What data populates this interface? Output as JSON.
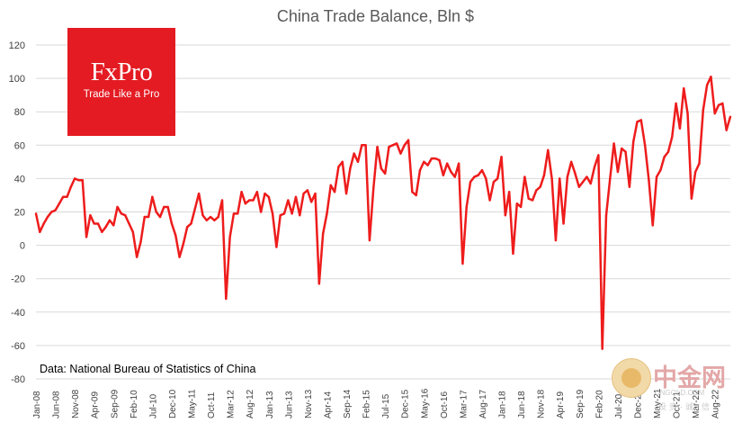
{
  "chart_data": {
    "type": "line",
    "title": "China Trade Balance, Bln $",
    "source_note": "Data: National Bureau of Statistics of China",
    "brand": {
      "name": "FxPro",
      "tagline": "Trade Like a Pro",
      "color": "#e41b23"
    },
    "watermark": {
      "name": "中金网",
      "url": "CNGOLD.COM",
      "tagline": "投资·诚·信"
    },
    "ylim": [
      -80,
      120
    ],
    "yticks": [
      -80,
      -60,
      -40,
      -20,
      0,
      20,
      40,
      60,
      80,
      100,
      120
    ],
    "grid": true,
    "line_color": "#ee1c1c",
    "x_start": "Jan-08",
    "xtick_labels": [
      "Jan-08",
      "Jun-08",
      "Nov-08",
      "Apr-09",
      "Sep-09",
      "Feb-10",
      "Jul-10",
      "Dec-10",
      "May-11",
      "Oct-11",
      "Mar-12",
      "Aug-12",
      "Jan-13",
      "Jun-13",
      "Nov-13",
      "Apr-14",
      "Sep-14",
      "Feb-15",
      "Jul-15",
      "Dec-15",
      "May-16",
      "Oct-16",
      "Mar-17",
      "Aug-17",
      "Jan-18",
      "Jun-18",
      "Nov-18",
      "Apr-19",
      "Sep-19",
      "Feb-20",
      "Jul-20",
      "Dec-20",
      "May-21",
      "Oct-21",
      "Mar-22",
      "Aug-22"
    ],
    "series": [
      {
        "values": [
          19,
          8,
          13,
          17,
          20,
          21,
          25,
          29,
          29,
          35,
          40,
          39,
          39,
          5,
          18,
          13,
          13,
          8,
          11,
          15,
          12,
          23,
          19,
          18,
          13,
          8,
          -7,
          2,
          17,
          17,
          29,
          20,
          17,
          23,
          23,
          13,
          6,
          -7,
          1,
          11,
          13,
          22,
          31,
          18,
          15,
          17,
          15,
          17,
          27,
          -32,
          5,
          19,
          19,
          32,
          25,
          27,
          27,
          32,
          20,
          31,
          29,
          19,
          -1,
          18,
          19,
          27,
          19,
          29,
          18,
          31,
          33,
          26,
          31,
          -23,
          7,
          19,
          36,
          32,
          47,
          50,
          31,
          46,
          55,
          50,
          60,
          60,
          3,
          34,
          59,
          46,
          43,
          59,
          60,
          61,
          55,
          60,
          63,
          32,
          30,
          45,
          50,
          48,
          52,
          52,
          51,
          42,
          49,
          44,
          41,
          49,
          -11,
          23,
          38,
          41,
          42,
          45,
          40,
          27,
          38,
          40,
          53,
          18,
          32,
          -5,
          25,
          23,
          41,
          28,
          27,
          33,
          35,
          42,
          57,
          40,
          3,
          40,
          13,
          41,
          50,
          43,
          35,
          38,
          41,
          37,
          47,
          54,
          -62,
          18,
          40,
          61,
          44,
          58,
          56,
          35,
          62,
          74,
          75,
          60,
          39,
          12,
          41,
          45,
          53,
          56,
          65,
          85,
          70,
          94,
          79,
          28,
          44,
          49,
          81,
          96,
          101,
          79,
          84,
          85,
          69,
          77
        ]
      }
    ]
  }
}
